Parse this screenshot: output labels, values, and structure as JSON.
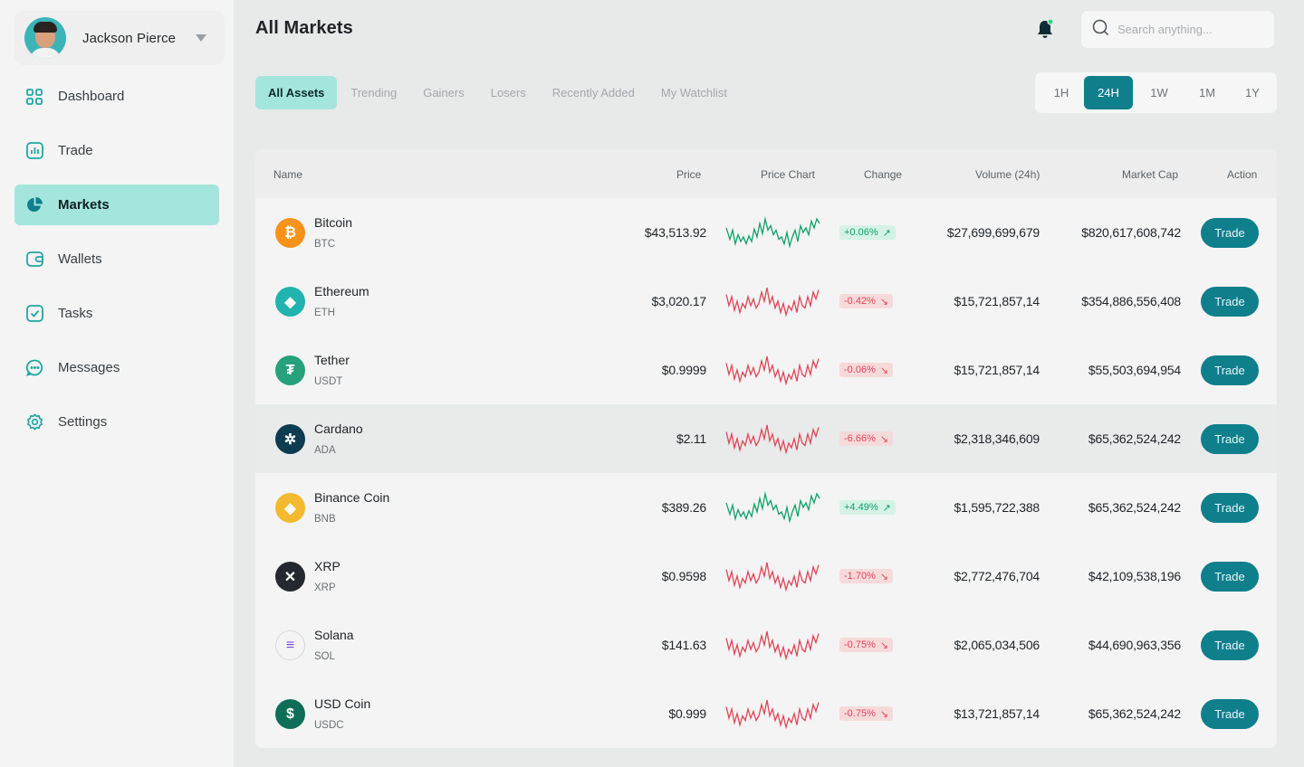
{
  "user": {
    "name": "Jackson Pierce"
  },
  "sidebar": {
    "items": [
      {
        "label": "Dashboard",
        "icon": "grid-icon"
      },
      {
        "label": "Trade",
        "icon": "chart-icon"
      },
      {
        "label": "Markets",
        "icon": "pie-chart-icon",
        "active": true
      },
      {
        "label": "Wallets",
        "icon": "wallet-icon"
      },
      {
        "label": "Tasks",
        "icon": "checkbox-icon"
      },
      {
        "label": "Messages",
        "icon": "chat-icon"
      },
      {
        "label": "Settings",
        "icon": "gear-icon"
      }
    ]
  },
  "header": {
    "title": "All Markets"
  },
  "search": {
    "placeholder": "Search anything..."
  },
  "tabs": [
    "All Assets",
    "Trending",
    "Gainers",
    "Losers",
    "Recently Added",
    "My Watchlist"
  ],
  "ranges": [
    "1H",
    "24H",
    "1W",
    "1M",
    "1Y"
  ],
  "table": {
    "headers": {
      "name": "Name",
      "price": "Price",
      "chart": "Price Chart",
      "change": "Change",
      "volume": "Volume (24h)",
      "mcap": "Market Cap",
      "action": "Action"
    },
    "trade_label": "Trade",
    "rows": [
      {
        "name": "Bitcoin",
        "symbol": "BTC",
        "price": "$43,513.92",
        "change": "+0.06%",
        "direction": "up",
        "volume": "$27,699,699,679",
        "mcap": "$820,617,608,742",
        "icon_color": "#f7931a",
        "glyph": "₿"
      },
      {
        "name": "Ethereum",
        "symbol": "ETH",
        "price": "$3,020.17",
        "change": "-0.42%",
        "direction": "down",
        "volume": "$15,721,857,14",
        "mcap": "$354,886,556,408",
        "icon_color": "#21b3b0",
        "glyph": "◆"
      },
      {
        "name": "Tether",
        "symbol": "USDT",
        "price": "$0.9999",
        "change": "-0.06%",
        "direction": "down",
        "volume": "$15,721,857,14",
        "mcap": "$55,503,694,954",
        "icon_color": "#26a17b",
        "glyph": "₮"
      },
      {
        "name": "Cardano",
        "symbol": "ADA",
        "price": "$2.11",
        "change": "-6.66%",
        "direction": "down",
        "volume": "$2,318,346,609",
        "mcap": "$65,362,524,242",
        "icon_color": "#0d3b4f",
        "glyph": "✲"
      },
      {
        "name": "Binance Coin",
        "symbol": "BNB",
        "price": "$389.26",
        "change": "+4.49%",
        "direction": "up",
        "volume": "$1,595,722,388",
        "mcap": "$65,362,524,242",
        "icon_color": "#f3ba2f",
        "glyph": "◈"
      },
      {
        "name": "XRP",
        "symbol": "XRP",
        "price": "$0.9598",
        "change": "-1.70%",
        "direction": "down",
        "volume": "$2,772,476,704",
        "mcap": "$42,109,538,196",
        "icon_color": "#23292f",
        "glyph": "✕"
      },
      {
        "name": "Solana",
        "symbol": "SOL",
        "price": "$141.63",
        "change": "-0.75%",
        "direction": "down",
        "volume": "$2,065,034,506",
        "mcap": "$44,690,963,356",
        "icon_color": "#f4f4f4",
        "glyph": "≡"
      },
      {
        "name": "USD Coin",
        "symbol": "USDC",
        "price": "$0.999",
        "change": "-0.75%",
        "direction": "down",
        "volume": "$13,721,857,14",
        "mcap": "$65,362,524,242",
        "icon_color": "#0f6e57",
        "glyph": "$"
      }
    ]
  },
  "colors": {
    "accent": "#0f7f8c",
    "accent_light": "#a4e6dd",
    "up": "#11a36a",
    "down": "#e0475a"
  }
}
